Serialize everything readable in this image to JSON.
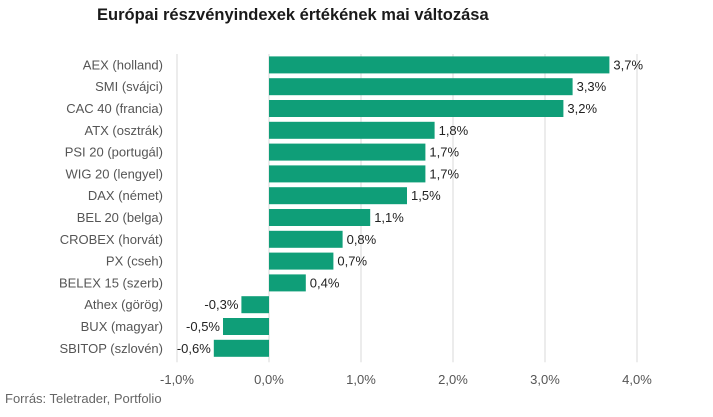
{
  "title": "Európai részvényindexek értékének mai változása",
  "source": "Forrás: Teletrader, Portfolio",
  "chart_data": {
    "type": "bar",
    "orientation": "horizontal",
    "bar_color": "#0f9e78",
    "categories": [
      "AEX (holland)",
      "SMI (svájci)",
      "CAC 40 (francia)",
      "ATX (osztrák)",
      "PSI 20 (portugál)",
      "WIG 20 (lengyel)",
      "DAX (német)",
      "BEL 20 (belga)",
      "CROBEX (horvát)",
      "PX (cseh)",
      "BELEX 15 (szerb)",
      "Athex (görög)",
      "BUX (magyar)",
      "SBITOP (szlovén)"
    ],
    "values": [
      3.7,
      3.3,
      3.2,
      1.8,
      1.7,
      1.7,
      1.5,
      1.1,
      0.8,
      0.7,
      0.4,
      -0.3,
      -0.5,
      -0.6
    ],
    "value_labels": [
      "3,7%",
      "3,3%",
      "3,2%",
      "1,8%",
      "1,7%",
      "1,7%",
      "1,5%",
      "1,1%",
      "0,8%",
      "0,7%",
      "0,4%",
      "-0,3%",
      "-0,5%",
      "-0,6%"
    ],
    "xlim": [
      -1.0,
      4.0
    ],
    "xticks": [
      -1.0,
      0.0,
      1.0,
      2.0,
      3.0,
      4.0
    ],
    "xtick_labels": [
      "-1,0%",
      "0,0%",
      "1,0%",
      "2,0%",
      "3,0%",
      "4,0%"
    ],
    "grid": "vertical"
  }
}
